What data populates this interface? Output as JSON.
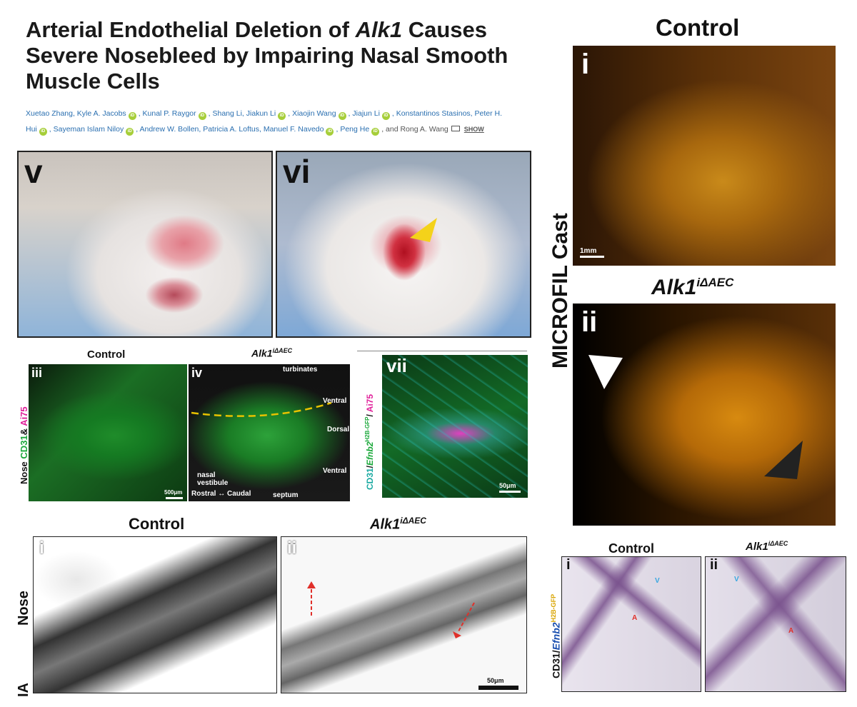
{
  "title": {
    "part1": "Arterial Endothelial Deletion of ",
    "gene": "Alk1",
    "part2": " Causes Severe Nosebleed by Impairing Nasal Smooth Muscle Cells"
  },
  "authors": {
    "line1": [
      "Xuetao Zhang, Kyle A. Jacobs",
      "Kunal P. Raygor",
      "Shang Li, Jiakun Li",
      "Xiaojin Wang",
      "Jiajun Li",
      "Konstantinos Stasinos, Peter H."
    ],
    "line2": [
      "Hui",
      "Sayeman Islam Niloy",
      "Andrew W. Bollen, Patricia A. Loftus, Manuel F. Navedo",
      "Peng He"
    ],
    "and_text": ", and Rong A. Wang",
    "show_label": "SHOW",
    "orcid_label": "iD"
  },
  "panels": {
    "v": "v",
    "vi": "vi",
    "iii": "iii",
    "iv": "iv",
    "vii": "vii",
    "cast_i": "i",
    "cast_ii": "ii",
    "bw_i": "i",
    "bw_ii": "ii",
    "lr_i": "i",
    "lr_ii": "ii"
  },
  "labels": {
    "control": "Control",
    "alk1_base": "Alk1",
    "alk1_sup": "iΔAEC",
    "microfil": "MICROFIL Cast",
    "nose_axis": "Nose",
    "nose_cd31": "CD31",
    "nose_amp": "&",
    "nose_ai75": "Ai75",
    "turbinates": "turbinates",
    "ventral_top": "Ventral",
    "dorsal": "Dorsal",
    "ventral_bottom": "Ventral",
    "nasal_vestibule_1": "nasal",
    "nasal_vestibule_2": "vestibule",
    "rostral_caudal": "Rostral ↔ Caudal",
    "septum": "septum",
    "scale_500": "500μm",
    "scale_50": "50μm",
    "scale_1mm": "1mm",
    "vii_cd31": "CD31",
    "vii_efnb2": "Efnb2",
    "vii_efnb2_sup": "H2B-GFP",
    "vii_ai75": "Ai75",
    "bw_nose": "Nose",
    "bw_ia": "IA",
    "lr_cd31": "CD31/",
    "lr_efnb2": "Efnb2",
    "lr_efnb2_sup": "H2B-GFP",
    "v_marker": "V",
    "a_marker": "A"
  },
  "colors": {
    "author_link": "#2a6fb0",
    "orcid": "#a6ce39",
    "cd31_green": "#1aa83a",
    "ai75_magenta": "#e0209a",
    "efnb2_blue": "#1a4fb0",
    "dashed_yellow": "#e8c200",
    "arrow_yellow": "#f4d21a",
    "arrow_red": "#e0302a"
  }
}
